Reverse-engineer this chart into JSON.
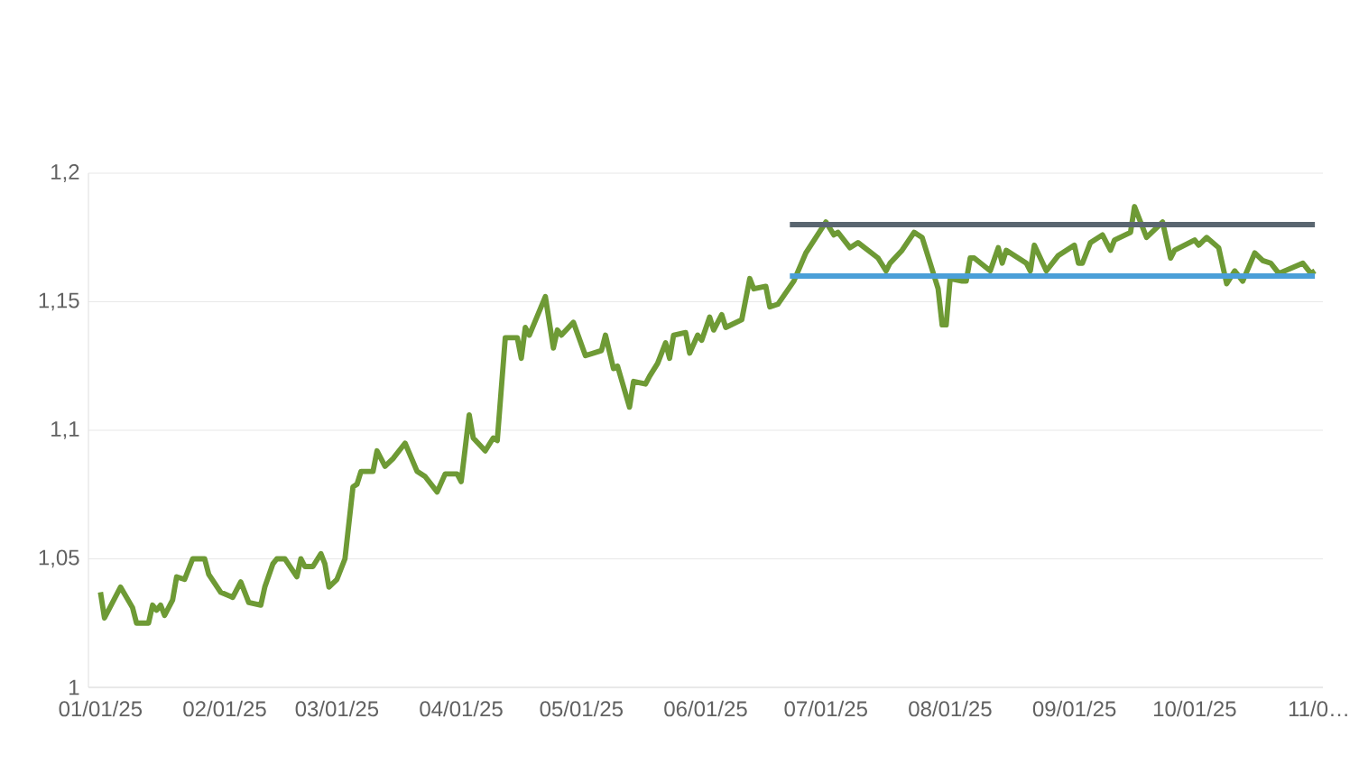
{
  "chart_data": {
    "type": "line",
    "xlim": [
      "2024-12-29",
      "2025-11-02"
    ],
    "ylim": [
      1,
      1.2
    ],
    "xticks": [
      {
        "value": "2025-01-01",
        "label": "01/01/25"
      },
      {
        "value": "2025-02-01",
        "label": "02/01/25"
      },
      {
        "value": "2025-03-01",
        "label": "03/01/25"
      },
      {
        "value": "2025-04-01",
        "label": "04/01/25"
      },
      {
        "value": "2025-05-01",
        "label": "05/01/25"
      },
      {
        "value": "2025-06-01",
        "label": "06/01/25"
      },
      {
        "value": "2025-07-01",
        "label": "07/01/25"
      },
      {
        "value": "2025-08-01",
        "label": "08/01/25"
      },
      {
        "value": "2025-09-01",
        "label": "09/01/25"
      },
      {
        "value": "2025-10-01",
        "label": "10/01/25"
      },
      {
        "value": "2025-11-01",
        "label": "11/0…"
      }
    ],
    "yticks": [
      {
        "value": 1,
        "label": "1"
      },
      {
        "value": 1.05,
        "label": "1,05"
      },
      {
        "value": 1.1,
        "label": "1,1"
      },
      {
        "value": 1.15,
        "label": "1,15"
      },
      {
        "value": 1.2,
        "label": "1,2"
      }
    ],
    "grid": "y",
    "marker": "none",
    "line_style": "solid",
    "series": [
      {
        "color": "#6e9a35",
        "x": [
          "2025-01-01",
          "2025-01-02",
          "2025-01-06",
          "2025-01-09",
          "2025-01-10",
          "2025-01-13",
          "2025-01-14",
          "2025-01-15",
          "2025-01-16",
          "2025-01-17",
          "2025-01-19",
          "2025-01-20",
          "2025-01-22",
          "2025-01-24",
          "2025-01-27",
          "2025-01-28",
          "2025-01-31",
          "2025-02-03",
          "2025-02-05",
          "2025-02-07",
          "2025-02-10",
          "2025-02-11",
          "2025-02-13",
          "2025-02-14",
          "2025-02-16",
          "2025-02-19",
          "2025-02-20",
          "2025-02-21",
          "2025-02-23",
          "2025-02-25",
          "2025-02-26",
          "2025-02-27",
          "2025-03-01",
          "2025-03-03",
          "2025-03-05",
          "2025-03-06",
          "2025-03-07",
          "2025-03-10",
          "2025-03-11",
          "2025-03-13",
          "2025-03-15",
          "2025-03-18",
          "2025-03-21",
          "2025-03-23",
          "2025-03-26",
          "2025-03-28",
          "2025-03-31",
          "2025-04-01",
          "2025-04-03",
          "2025-04-04",
          "2025-04-07",
          "2025-04-09",
          "2025-04-10",
          "2025-04-12",
          "2025-04-15",
          "2025-04-16",
          "2025-04-17",
          "2025-04-18",
          "2025-04-22",
          "2025-04-24",
          "2025-04-25",
          "2025-04-26",
          "2025-04-29",
          "2025-05-02",
          "2025-05-06",
          "2025-05-07",
          "2025-05-09",
          "2025-05-10",
          "2025-05-13",
          "2025-05-14",
          "2025-05-17",
          "2025-05-18",
          "2025-05-20",
          "2025-05-22",
          "2025-05-23",
          "2025-05-24",
          "2025-05-27",
          "2025-05-28",
          "2025-05-30",
          "2025-05-31",
          "2025-06-02",
          "2025-06-03",
          "2025-06-05",
          "2025-06-06",
          "2025-06-10",
          "2025-06-12",
          "2025-06-13",
          "2025-06-16",
          "2025-06-17",
          "2025-06-19",
          "2025-06-23",
          "2025-06-26",
          "2025-07-01",
          "2025-07-03",
          "2025-07-04",
          "2025-07-07",
          "2025-07-09",
          "2025-07-14",
          "2025-07-16",
          "2025-07-17",
          "2025-07-20",
          "2025-07-23",
          "2025-07-25",
          "2025-07-29",
          "2025-07-30",
          "2025-07-31",
          "2025-08-01",
          "2025-08-04",
          "2025-08-05",
          "2025-08-06",
          "2025-08-07",
          "2025-08-11",
          "2025-08-13",
          "2025-08-14",
          "2025-08-15",
          "2025-08-20",
          "2025-08-21",
          "2025-08-22",
          "2025-08-25",
          "2025-08-28",
          "2025-09-01",
          "2025-09-02",
          "2025-09-03",
          "2025-09-05",
          "2025-09-08",
          "2025-09-10",
          "2025-09-11",
          "2025-09-15",
          "2025-09-16",
          "2025-09-19",
          "2025-09-23",
          "2025-09-25",
          "2025-09-26",
          "2025-10-01",
          "2025-10-02",
          "2025-10-04",
          "2025-10-07",
          "2025-10-09",
          "2025-10-11",
          "2025-10-13",
          "2025-10-16",
          "2025-10-18",
          "2025-10-20",
          "2025-10-22",
          "2025-10-28",
          "2025-10-30",
          "2025-10-31"
        ],
        "values": [
          1.037,
          1.027,
          1.039,
          1.031,
          1.025,
          1.025,
          1.032,
          1.03,
          1.032,
          1.028,
          1.034,
          1.043,
          1.042,
          1.05,
          1.05,
          1.044,
          1.037,
          1.035,
          1.041,
          1.033,
          1.032,
          1.039,
          1.048,
          1.05,
          1.05,
          1.043,
          1.05,
          1.047,
          1.047,
          1.052,
          1.048,
          1.039,
          1.042,
          1.05,
          1.078,
          1.079,
          1.084,
          1.084,
          1.092,
          1.086,
          1.089,
          1.095,
          1.084,
          1.082,
          1.076,
          1.083,
          1.083,
          1.08,
          1.106,
          1.097,
          1.092,
          1.097,
          1.096,
          1.136,
          1.136,
          1.128,
          1.14,
          1.137,
          1.152,
          1.132,
          1.139,
          1.137,
          1.142,
          1.129,
          1.131,
          1.137,
          1.124,
          1.125,
          1.109,
          1.119,
          1.118,
          1.121,
          1.126,
          1.134,
          1.128,
          1.137,
          1.138,
          1.13,
          1.137,
          1.135,
          1.144,
          1.139,
          1.145,
          1.14,
          1.143,
          1.159,
          1.155,
          1.156,
          1.148,
          1.149,
          1.158,
          1.169,
          1.181,
          1.176,
          1.177,
          1.171,
          1.173,
          1.167,
          1.162,
          1.165,
          1.17,
          1.177,
          1.175,
          1.155,
          1.141,
          1.141,
          1.159,
          1.158,
          1.158,
          1.167,
          1.167,
          1.162,
          1.171,
          1.165,
          1.17,
          1.165,
          1.162,
          1.172,
          1.162,
          1.168,
          1.172,
          1.165,
          1.165,
          1.173,
          1.176,
          1.17,
          1.174,
          1.177,
          1.187,
          1.175,
          1.181,
          1.167,
          1.17,
          1.174,
          1.172,
          1.175,
          1.171,
          1.157,
          1.162,
          1.158,
          1.169,
          1.166,
          1.165,
          1.161,
          1.165,
          1.161,
          1.162
        ]
      },
      {
        "color": "#5a6670",
        "x": [
          "2025-06-22",
          "2025-10-31"
        ],
        "values": [
          1.18,
          1.18
        ]
      },
      {
        "color": "#4a9fd8",
        "x": [
          "2025-06-22",
          "2025-10-31"
        ],
        "values": [
          1.16,
          1.16
        ]
      }
    ]
  }
}
